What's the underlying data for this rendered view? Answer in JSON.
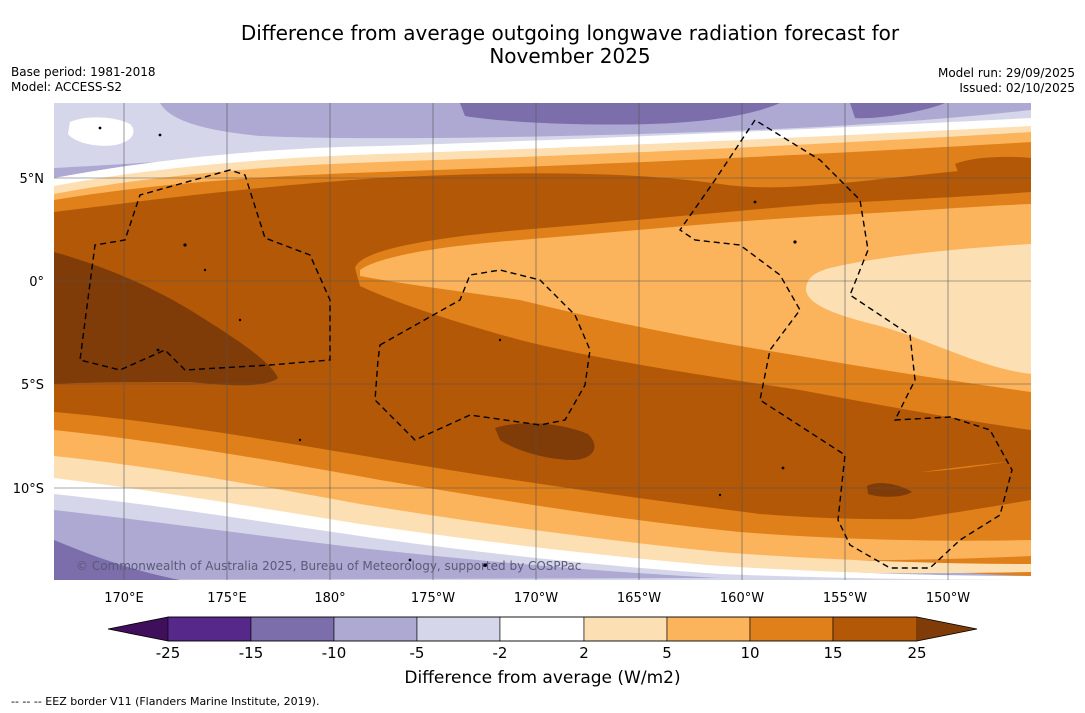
{
  "header": {
    "title_line1": "Difference from average outgoing longwave radiation forecast for",
    "title_line2": "November 2025",
    "base_period": "Base period: 1981-2018",
    "model": "Model: ACCESS-S2",
    "model_run": "Model run: 29/09/2025",
    "issued": "Issued: 02/10/2025"
  },
  "map": {
    "lon_ticks": [
      "170°E",
      "175°E",
      "180°",
      "175°W",
      "170°W",
      "165°W",
      "160°W",
      "155°W",
      "150°W"
    ],
    "lat_ticks": [
      "5°N",
      "0°",
      "5°S",
      "10°S"
    ],
    "copyright": "© Commonwealth of Australia 2025, Bureau of Meteorology, supported by COSPPac",
    "region": {
      "lon_range": [
        "167.5°E",
        "145.5°W"
      ],
      "lat_range": [
        "14.5°S",
        "8.5°N"
      ]
    },
    "features": [
      "Pacific island coastlines",
      "EEZ boundaries"
    ]
  },
  "colorbar": {
    "ticks": [
      "-25",
      "-15",
      "-10",
      "-5",
      "-2",
      "2",
      "5",
      "10",
      "15",
      "25"
    ],
    "colors": [
      "#3f0f5c",
      "#55288a",
      "#7b6eab",
      "#ada9d2",
      "#d6d6ea",
      "#ffffff",
      "#fddfb4",
      "#fbb45c",
      "#e0801a",
      "#b35806",
      "#7f3b08"
    ],
    "label": "Difference from average (W/m2)"
  },
  "legend": {
    "eez": "--  --  -- EEZ border V11 (Flanders Marine Institute, 2019)."
  }
}
